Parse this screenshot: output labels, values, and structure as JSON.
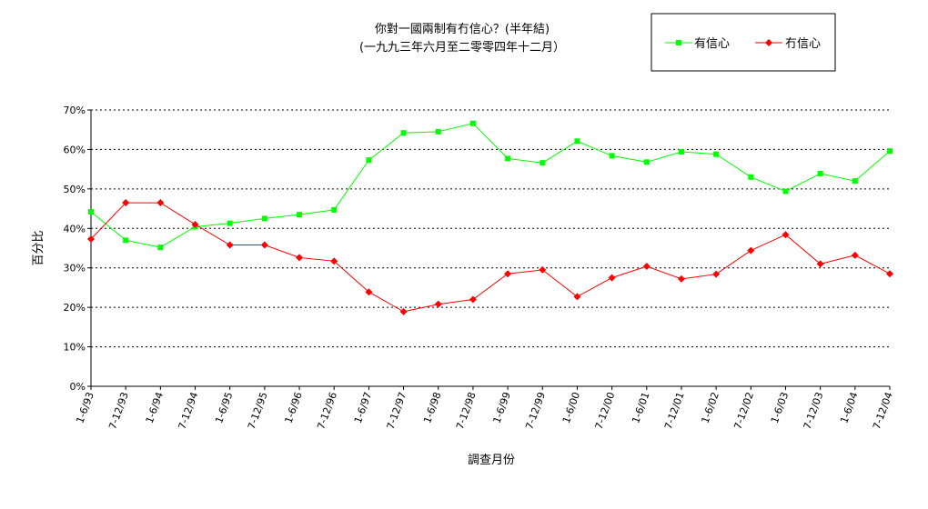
{
  "chart_data": {
    "type": "line",
    "title": "你對一國兩制有冇信心？(半年結)",
    "subtitle": "(一九九三年六月至二零零四年十二月）",
    "xlabel": "調查月份",
    "ylabel": "百分比",
    "ylim": [
      0,
      70
    ],
    "ytick_step": 10,
    "ytick_suffix": "%",
    "grid": true,
    "legend_position": "top-right",
    "categories": [
      "1-6/93",
      "7-12/93",
      "1-6/94",
      "7-12/94",
      "1-6/95",
      "7-12/95",
      "1-6/96",
      "7-12/96",
      "1-6/97",
      "7-12/97",
      "1-6/98",
      "7-12/98",
      "1-6/99",
      "7-12/99",
      "1-6/00",
      "7-12/00",
      "1-6/01",
      "7-12/01",
      "1-6/02",
      "7-12/02",
      "1-6/03",
      "7-12/03",
      "1-6/04",
      "7-12/04"
    ],
    "series": [
      {
        "name": "有信心",
        "color": "#00ff00",
        "marker": "square",
        "values": [
          44.2,
          37.0,
          35.2,
          40.4,
          41.3,
          42.5,
          43.5,
          44.7,
          57.3,
          64.2,
          64.5,
          66.6,
          57.7,
          56.6,
          62.1,
          58.4,
          56.8,
          59.4,
          58.8,
          53.0,
          49.4,
          53.9,
          52.0,
          59.6
        ]
      },
      {
        "name": "冇信心",
        "color": "#ff0000",
        "marker": "diamond",
        "values": [
          37.3,
          46.5,
          46.5,
          41.0,
          35.8,
          35.8,
          32.6,
          31.7,
          23.9,
          18.9,
          20.8,
          22.0,
          28.5,
          29.5,
          22.7,
          27.5,
          30.4,
          27.2,
          28.4,
          34.4,
          38.4,
          31.0,
          33.2,
          28.5
        ]
      }
    ]
  }
}
